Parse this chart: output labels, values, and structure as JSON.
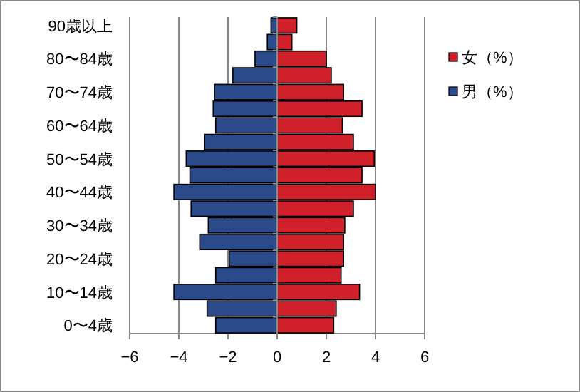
{
  "chart_data": {
    "type": "bar",
    "orientation": "horizontal",
    "stacked": true,
    "categories": [
      "90歳以上",
      null,
      "80〜84歳",
      null,
      "70〜74歳",
      null,
      "60〜64歳",
      null,
      "50〜54歳",
      null,
      "40〜44歳",
      null,
      "30〜34歳",
      null,
      "20〜24歳",
      null,
      "10〜14歳",
      null,
      "0〜4歳"
    ],
    "series": [
      {
        "name": "女（%）",
        "color": "#d0202a",
        "values": [
          0.8,
          0.6,
          2.0,
          2.2,
          2.7,
          3.45,
          2.65,
          3.1,
          3.95,
          3.45,
          4.0,
          3.1,
          2.75,
          2.7,
          2.7,
          2.6,
          3.35,
          2.4,
          2.3
        ]
      },
      {
        "name": "男（%）",
        "color": "#2a4a8a",
        "values": [
          -0.25,
          -0.4,
          -0.9,
          -1.8,
          -2.55,
          -2.6,
          -2.5,
          -2.95,
          -3.7,
          -3.55,
          -4.2,
          -3.5,
          -2.8,
          -3.15,
          -1.95,
          -2.5,
          -4.2,
          -2.85,
          -2.5
        ]
      }
    ],
    "xlim": [
      -6,
      6
    ],
    "xticks": [
      -6,
      -4,
      -2,
      0,
      2,
      4,
      6
    ],
    "grid": "x",
    "legend": "right"
  }
}
